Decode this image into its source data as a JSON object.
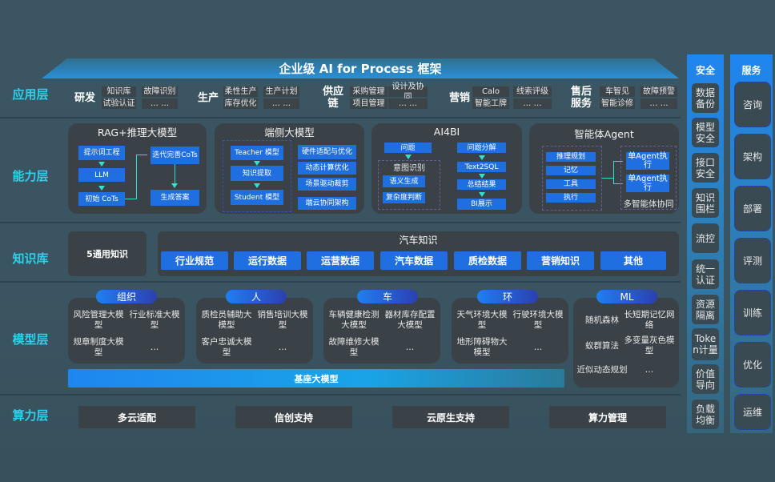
{
  "title": "企业级 AI for Process 框架",
  "layers": {
    "app": "应用层",
    "capability": "能力层",
    "knowledge": "知识库",
    "model": "模型层",
    "compute": "算力层"
  },
  "app": [
    {
      "name": "研发",
      "items": [
        "知识库",
        "故障识别",
        "试验认证",
        "… …"
      ]
    },
    {
      "name": "生产",
      "items": [
        "柔性生产",
        "生产计划",
        "库存优化",
        "… …"
      ]
    },
    {
      "name": "供应链",
      "items": [
        "采购管理",
        "设计及协同",
        "项目管理",
        "… …"
      ]
    },
    {
      "name": "营销",
      "items": [
        "Calo",
        "线索评级",
        "智能工牌",
        "… …"
      ]
    },
    {
      "name": "售后服务",
      "items": [
        "车智见",
        "故障预警",
        "智能诊修",
        "… …"
      ]
    }
  ],
  "capability": {
    "rag": {
      "title": "RAG+推理大模型",
      "items": [
        "提示词工程",
        "LLM",
        "初始 CoTs",
        "迭代完善CoTs",
        "生成答案"
      ]
    },
    "edge": {
      "title": "端侧大模型",
      "items": [
        "Teacher 模型",
        "知识提取",
        "Student 模型",
        "硬件适配与优化",
        "动态计算优化",
        "场景驱动裁剪",
        "端云协同架构"
      ]
    },
    "ai4bi": {
      "title": "AI4BI",
      "items": [
        "问题",
        "意图识别",
        "语义生成",
        "复杂度判断",
        "问题分解",
        "Text2SQL",
        "总结结果",
        "BI展示"
      ]
    },
    "agent": {
      "title": "智能体Agent",
      "items": [
        "推理规划",
        "记忆",
        "工具",
        "执行",
        "单Agent执行",
        "单Agent执行",
        "多智能体协同"
      ]
    }
  },
  "knowledge": {
    "general": "5通用知识",
    "auto_title": "汽车知识",
    "chips": [
      "行业规范",
      "运行数据",
      "运营数据",
      "汽车数据",
      "质检数据",
      "营销知识",
      "其他"
    ]
  },
  "models": [
    {
      "name": "组织",
      "items": [
        "风险管理大模型",
        "行业标准大模型",
        "规章制度大模型",
        "…"
      ]
    },
    {
      "name": "人",
      "items": [
        "质检员辅助大模型",
        "销售培训大模型",
        "客户忠诚大模型",
        "…"
      ]
    },
    {
      "name": "车",
      "items": [
        "车辆健康检测大模型",
        "器材库存配置大模型",
        "故障维修大模型",
        "…"
      ]
    },
    {
      "name": "环",
      "items": [
        "天气环境大模型",
        "行驶环境大模型",
        "地形障碍物大模型",
        "…"
      ]
    },
    {
      "name": "ML",
      "items": [
        "随机森林",
        "长短期记忆网络",
        "蚁群算法",
        "多变量灰色模型",
        "近似动态规划",
        "…"
      ]
    }
  ],
  "base_model": "基座大模型",
  "compute": [
    "多云适配",
    "信创支持",
    "云原生支持",
    "算力管理"
  ],
  "security": {
    "title": "安全",
    "items": [
      "数据备份",
      "模型安全",
      "接口安全",
      "知识围栏",
      "流控",
      "统一认证",
      "资源隔离",
      "Token计量",
      "价值导向",
      "负载均衡"
    ]
  },
  "service": {
    "title": "服务",
    "items": [
      "咨询",
      "架构",
      "部署",
      "评测",
      "训练",
      "优化",
      "运维"
    ]
  }
}
